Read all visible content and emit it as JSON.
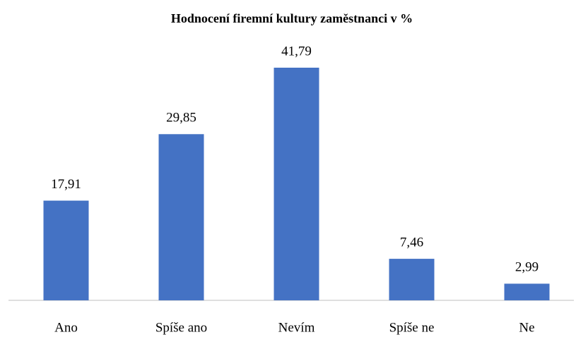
{
  "chart_data": {
    "type": "bar",
    "title": "Hodnocení firemní kultury zaměstnanci v %",
    "categories": [
      "Ano",
      "Spíše ano",
      "Nevím",
      "Spíše ne",
      "Ne"
    ],
    "values": [
      17.91,
      29.85,
      41.79,
      7.46,
      2.99
    ],
    "value_labels": [
      "17,91",
      "29,85",
      "41,79",
      "7,46",
      "2,99"
    ],
    "color": "#4472c4"
  }
}
